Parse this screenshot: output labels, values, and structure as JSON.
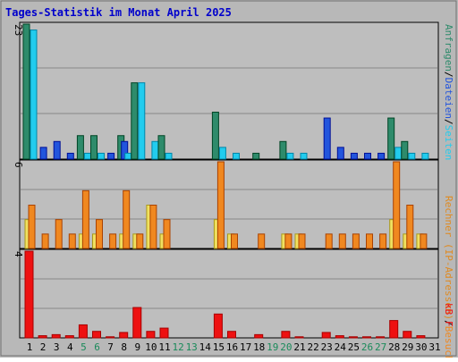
{
  "chart_data": [
    {
      "type": "bar",
      "title": "Tages-Statistik im Monat April 2025",
      "categories": [
        "1",
        "2",
        "3",
        "4",
        "5",
        "6",
        "7",
        "8",
        "9",
        "10",
        "11",
        "12",
        "13",
        "14",
        "15",
        "16",
        "17",
        "18",
        "19",
        "20",
        "21",
        "22",
        "23",
        "24",
        "25",
        "26",
        "27",
        "28",
        "29",
        "30",
        "31"
      ],
      "weekend_days": [
        "5",
        "6",
        "12",
        "13",
        "19",
        "20",
        "26",
        "27"
      ],
      "panel": "top",
      "ymax_label": "23",
      "ylim": [
        0,
        23
      ],
      "grid": true,
      "series": [
        {
          "name": "Anfragen",
          "color": "#2e8b6b",
          "values": [
            23,
            0,
            0,
            0,
            4,
            4,
            0,
            4,
            13,
            0,
            4,
            0,
            0,
            0,
            8,
            0,
            0,
            1,
            0,
            3,
            0,
            0,
            0,
            0,
            0,
            0,
            0,
            7,
            3,
            0,
            0
          ]
        },
        {
          "name": "Dateien",
          "color": "#2255dd",
          "values": [
            0,
            2,
            3,
            1,
            0,
            0,
            1,
            3,
            0,
            0,
            0,
            0,
            0,
            0,
            0,
            0,
            0,
            0,
            0,
            0,
            0,
            0,
            7,
            2,
            1,
            1,
            1,
            0,
            0,
            0,
            0
          ]
        },
        {
          "name": "Seiten",
          "color": "#22ccee",
          "values": [
            22,
            0,
            0,
            0,
            1,
            1,
            0,
            1,
            13,
            3,
            1,
            0,
            0,
            0,
            2,
            1,
            0,
            0,
            0,
            1,
            1,
            0,
            0,
            0,
            0,
            0,
            0,
            2,
            1,
            1,
            0
          ]
        }
      ],
      "legend_labels": [
        "Anfragen",
        "/",
        "Dateien",
        "/",
        "Seiten"
      ]
    },
    {
      "type": "bar",
      "panel": "middle",
      "ymax_label": "6",
      "ylim": [
        0,
        6
      ],
      "grid": true,
      "series": [
        {
          "name": "Rechner (IP-Adressen)",
          "color": "#f0e060",
          "values": [
            2,
            0,
            0,
            0,
            1,
            1,
            0,
            1,
            1,
            3,
            1,
            0,
            0,
            0,
            2,
            1,
            0,
            0,
            0,
            1,
            1,
            0,
            0,
            0,
            0,
            0,
            0,
            2,
            1,
            1,
            0
          ]
        },
        {
          "name": "Besuche",
          "color": "#f08820",
          "values": [
            3,
            1,
            2,
            1,
            4,
            2,
            1,
            4,
            1,
            3,
            2,
            0,
            0,
            0,
            6,
            1,
            0,
            1,
            0,
            1,
            1,
            0,
            1,
            1,
            1,
            1,
            1,
            6,
            3,
            1,
            0
          ]
        }
      ],
      "legend_labels": [
        "Rechner (IP-Adressen)",
        "/",
        "Besuche"
      ]
    },
    {
      "type": "bar",
      "panel": "bottom",
      "ymax_label": "4",
      "ylim": [
        0,
        4
      ],
      "grid": true,
      "series": [
        {
          "name": "kB F",
          "color": "#ee1111",
          "values": [
            4,
            0.1,
            0.15,
            0.1,
            0.6,
            0.3,
            0.05,
            0.25,
            1.4,
            0.3,
            0.45,
            0,
            0,
            0,
            1.1,
            0.3,
            0,
            0.15,
            0,
            0.3,
            0.05,
            0,
            0.25,
            0.1,
            0.05,
            0.05,
            0.05,
            0.8,
            0.3,
            0.1,
            0
          ]
        }
      ],
      "legend_labels": [
        "kB F"
      ]
    }
  ]
}
